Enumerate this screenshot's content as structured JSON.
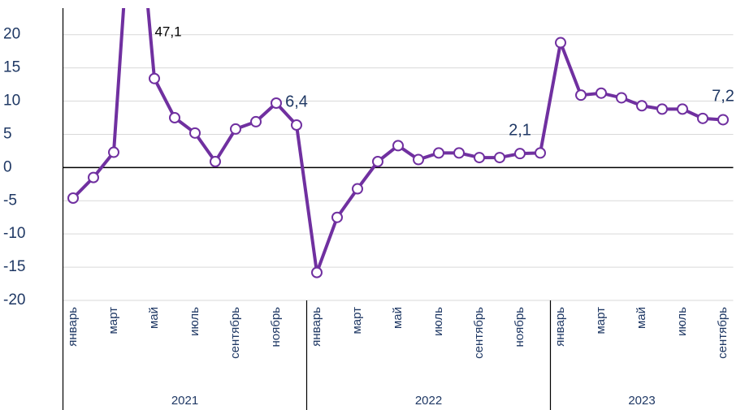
{
  "chart_data": {
    "type": "line",
    "categories": [
      "январь",
      null,
      "март",
      null,
      "май",
      null,
      "июль",
      null,
      "сентябрь",
      null,
      "ноябрь",
      null,
      "январь",
      null,
      "март",
      null,
      "май",
      null,
      "июль",
      null,
      "сентябрь",
      null,
      "ноябрь",
      null,
      "январь",
      null,
      "март",
      null,
      "май",
      null,
      "июль",
      null,
      "сентябрь"
    ],
    "years": [
      "2021",
      "2022",
      "2023"
    ],
    "series": [
      {
        "color": "#7030a0",
        "values": [
          -4.6,
          -1.5,
          2.3,
          47.1,
          13.4,
          7.5,
          5.2,
          0.9,
          5.8,
          6.9,
          9.7,
          6.4,
          -15.8,
          -7.5,
          -3.2,
          0.9,
          3.3,
          1.2,
          2.2,
          2.2,
          1.5,
          1.5,
          2.1,
          2.2,
          18.8,
          10.9,
          11.2,
          10.5,
          9.3,
          8.8,
          8.8,
          7.4,
          7.2
        ],
        "value_labels": [
          null,
          null,
          null,
          "47,1",
          null,
          null,
          null,
          null,
          null,
          null,
          null,
          "6,4",
          null,
          null,
          null,
          null,
          null,
          null,
          null,
          null,
          null,
          null,
          "2,1",
          null,
          null,
          null,
          null,
          null,
          null,
          null,
          null,
          null,
          "7,2"
        ]
      }
    ],
    "ylim": [
      -20,
      24
    ],
    "yticks": [
      -20,
      -15,
      -10,
      -5,
      0,
      5,
      10,
      15,
      20
    ],
    "grid": true
  }
}
